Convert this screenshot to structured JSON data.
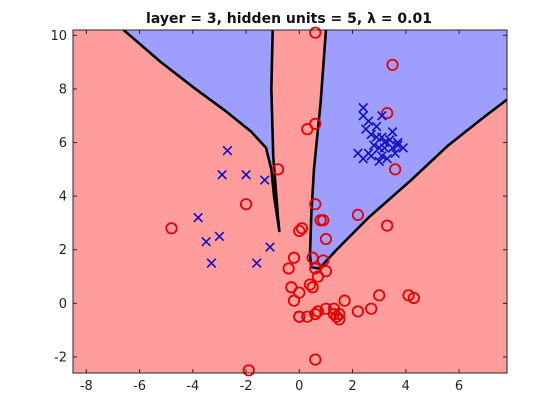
{
  "chart_data": {
    "type": "scatter",
    "title": "layer = 3, hidden units = 5, λ = 0.01",
    "xlabel": "",
    "ylabel": "",
    "xlim": [
      -8.5,
      7.8
    ],
    "ylim": [
      -2.6,
      10.2
    ],
    "xticks": [
      -8,
      -6,
      -4,
      -2,
      0,
      2,
      4,
      6
    ],
    "yticks": [
      -2,
      0,
      2,
      4,
      6,
      8,
      10
    ],
    "grid": false,
    "legend": "none",
    "colors": {
      "class1_region": "#ff9d9d",
      "class2_region": "#9e9eff",
      "boundary": "#000000",
      "circle_marker": "#e60000",
      "x_marker": "#1010c0"
    },
    "decision_boundaries": [
      {
        "x": [
          -6.6,
          -5.2,
          -3.9,
          -2.8,
          -1.8,
          -1.25,
          -1.05,
          -0.95,
          -0.75,
          -0.8,
          -0.98,
          -1.05,
          -1.0
        ],
        "y": [
          10.2,
          9.0,
          8.0,
          7.2,
          6.4,
          5.8,
          5.0,
          4.0,
          2.7,
          3.2,
          5.5,
          8.0,
          10.2
        ]
      },
      {
        "x": [
          1.0,
          0.8,
          0.55,
          0.45,
          0.4,
          0.45,
          0.75,
          1.4,
          2.6,
          4.2,
          5.6,
          7.0,
          7.8
        ],
        "y": [
          10.2,
          7.5,
          5.0,
          3.3,
          1.8,
          1.35,
          1.3,
          2.0,
          3.2,
          4.6,
          5.9,
          7.0,
          7.6
        ]
      }
    ],
    "series": [
      {
        "marker": "o",
        "x": [
          0.6,
          3.5,
          0.3,
          0.6,
          -0.8,
          3.3,
          3.6,
          -2.0,
          0.6,
          0.8,
          0.9,
          2.2,
          3.3,
          -4.8,
          0.0,
          0.1,
          1.0,
          0.5,
          0.6,
          0.9,
          -0.4,
          -0.2,
          0.7,
          1.0,
          0.4,
          -0.3,
          0.0,
          0.5,
          -0.2,
          0.0,
          1.0,
          1.3,
          1.7,
          2.2,
          2.7,
          3.0,
          4.1,
          4.3,
          1.3,
          1.4,
          0.0,
          0.3,
          0.6,
          0.7,
          1.5,
          1.5,
          0.6,
          -1.9
        ],
        "y": [
          10.1,
          8.9,
          6.5,
          6.7,
          5.0,
          7.1,
          5.0,
          3.7,
          3.7,
          3.1,
          3.1,
          3.3,
          2.9,
          2.8,
          2.7,
          2.8,
          2.4,
          1.7,
          1.3,
          1.6,
          1.3,
          1.7,
          1.0,
          1.2,
          0.7,
          0.6,
          0.4,
          0.6,
          0.1,
          -0.5,
          -0.2,
          -0.2,
          0.1,
          -0.3,
          -0.2,
          0.3,
          0.3,
          0.2,
          -0.4,
          -0.5,
          -0.5,
          -0.5,
          -0.4,
          -0.3,
          -0.6,
          -0.4,
          -2.1,
          -2.5
        ]
      },
      {
        "marker": "x",
        "x": [
          2.4,
          2.4,
          2.6,
          2.9,
          2.7,
          2.5,
          3.1,
          3.2,
          3.4,
          3.0,
          2.8,
          2.6,
          3.1,
          3.5,
          3.6,
          3.3,
          3.9,
          3.7,
          3.5,
          3.2,
          3.0,
          2.7,
          2.4,
          2.2,
          2.9,
          3.4,
          3.7,
          3.1,
          -2.7,
          -2.9,
          -2.0,
          -1.3,
          -3.8,
          -3.5,
          -3.0,
          -3.3,
          -1.6,
          -1.1
        ],
        "y": [
          7.3,
          7.0,
          6.8,
          6.6,
          6.3,
          6.5,
          6.2,
          6.0,
          6.1,
          5.8,
          5.9,
          5.6,
          5.5,
          5.8,
          5.6,
          5.4,
          5.8,
          6.0,
          6.4,
          5.8,
          5.3,
          5.5,
          5.4,
          5.6,
          6.2,
          6.1,
          5.9,
          7.0,
          5.7,
          4.8,
          4.8,
          4.6,
          3.2,
          2.3,
          2.5,
          1.5,
          1.5,
          2.1
        ]
      }
    ]
  }
}
